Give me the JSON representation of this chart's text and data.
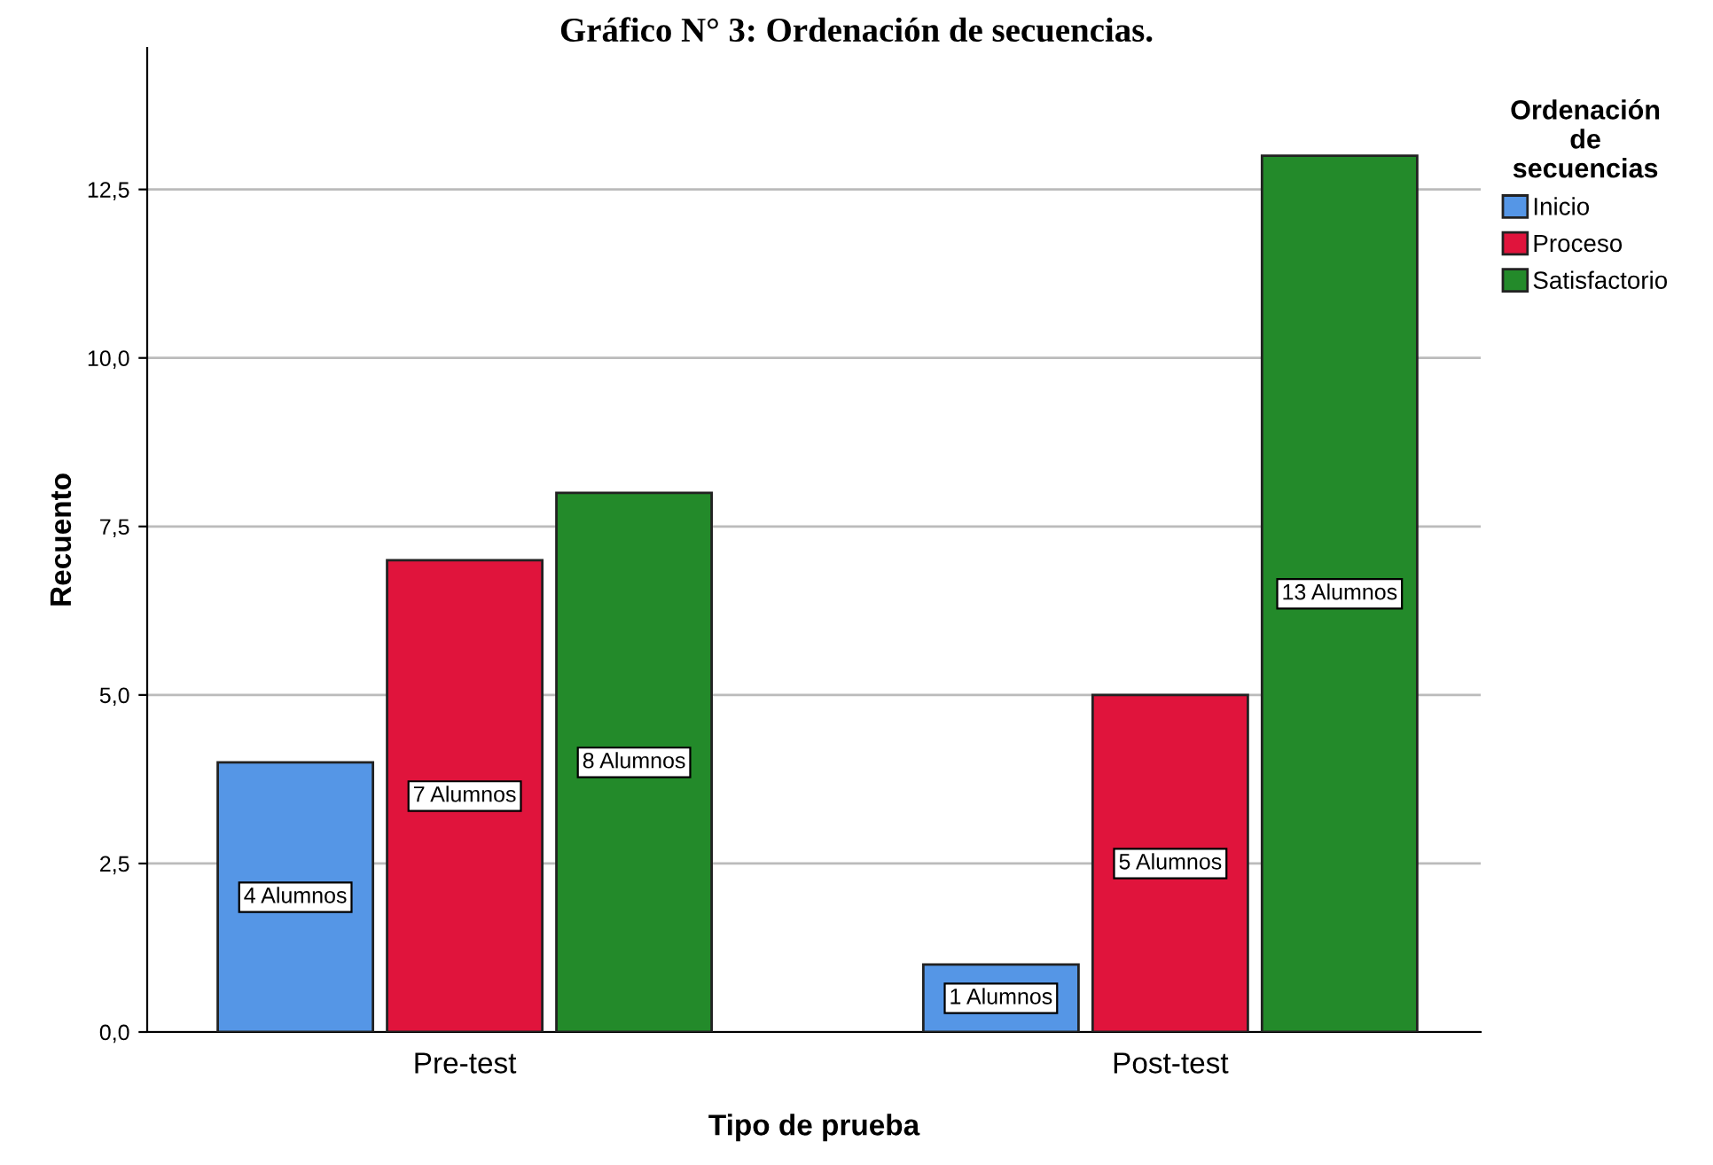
{
  "chart_data": {
    "type": "bar",
    "title": "Gráfico N° 3: Ordenación de secuencias.",
    "xlabel": "Tipo de prueba",
    "ylabel": "Recuento",
    "legend_title": "Ordenación\nde\nsecuencias",
    "categories": [
      "Pre-test",
      "Post-test"
    ],
    "series": [
      {
        "name": "Inicio",
        "color": "#5596e6",
        "values": [
          4,
          1
        ],
        "value_labels": [
          "4 Alumnos",
          "1 Alumnos"
        ]
      },
      {
        "name": "Proceso",
        "color": "#e0143c",
        "values": [
          7,
          5
        ],
        "value_labels": [
          "7 Alumnos",
          "5 Alumnos"
        ]
      },
      {
        "name": "Satisfactorio",
        "color": "#238a2a",
        "values": [
          8,
          13
        ],
        "value_labels": [
          "8 Alumnos",
          "13 Alumnos"
        ]
      }
    ],
    "ylim": [
      0,
      14.6
    ],
    "yticks": [
      {
        "value": 0,
        "label": "0,0"
      },
      {
        "value": 2.5,
        "label": "2,5"
      },
      {
        "value": 5,
        "label": "5,0"
      },
      {
        "value": 7.5,
        "label": "7,5"
      },
      {
        "value": 10,
        "label": "10,0"
      },
      {
        "value": 12.5,
        "label": "12,5"
      }
    ],
    "grid": "y",
    "legend": "top right"
  }
}
